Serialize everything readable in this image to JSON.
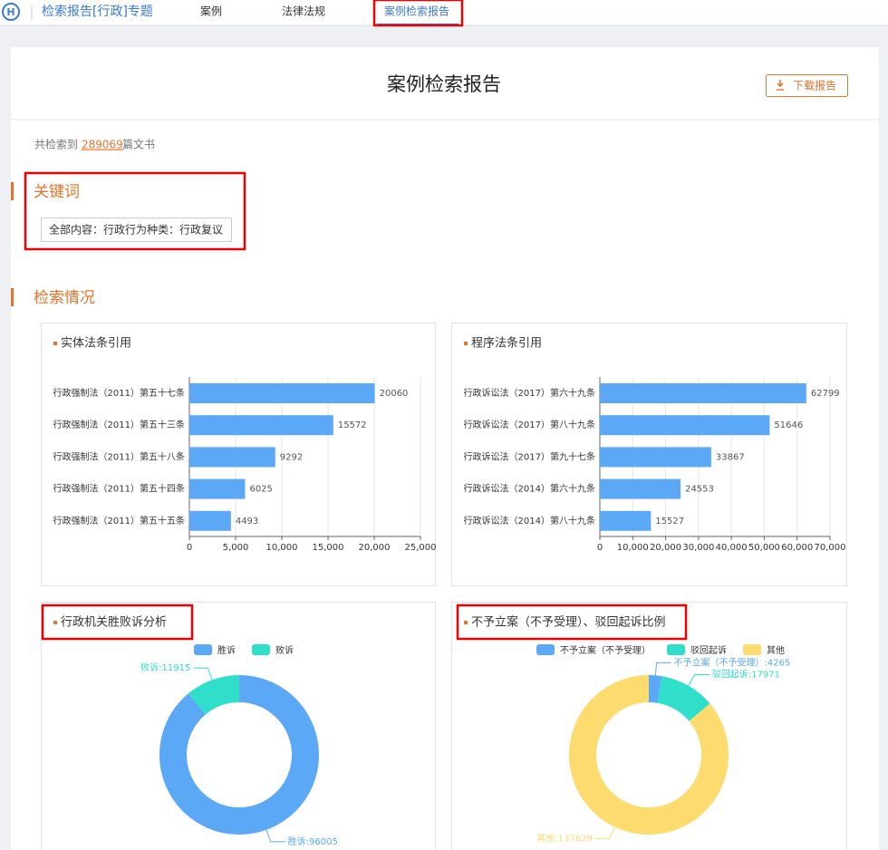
{
  "nav": {
    "brand": "检索报告[行政]专题",
    "tabs": [
      "案例",
      "法律法规",
      "案例检索报告"
    ]
  },
  "report": {
    "title": "案例检索报告",
    "download": "下载报告",
    "summary_prefix": "共检索到",
    "total": 289069,
    "summary_suffix": "篇文书"
  },
  "keywords": {
    "heading": "关键词",
    "tags": [
      "全部内容：行政行为种类：行政复议"
    ]
  },
  "search": {
    "heading": "检索情况"
  },
  "chart_data": [
    {
      "type": "bar",
      "title": "实体法条引用",
      "color": "#5ba8f7",
      "categories": [
        "行政强制法（2011）第五十七条",
        "行政强制法（2011）第五十三条",
        "行政强制法（2011）第五十八条",
        "行政强制法（2011）第五十四条",
        "行政强制法（2011）第五十五条"
      ],
      "values": [
        20060,
        15572,
        9292,
        6025,
        4493
      ],
      "xlim": [
        0,
        25000
      ],
      "xticks": [
        0,
        {
          "value": 5000,
          "label": "5,000"
        },
        {
          "value": 10000,
          "label": "10,000"
        },
        {
          "value": 15000,
          "label": "15,000"
        },
        {
          "value": 20000,
          "label": "20,000"
        },
        {
          "value": 25000,
          "label": "25,000"
        }
      ],
      "grid": true
    },
    {
      "type": "bar",
      "title": "程序法条引用",
      "color": "#5ba8f7",
      "categories": [
        "行政诉讼法（2017）第六十九条",
        "行政诉讼法（2017）第八十九条",
        "行政诉讼法（2017）第九十七条",
        "行政诉讼法（2014）第六十九条",
        "行政诉讼法（2014）第八十九条"
      ],
      "values": [
        62799,
        51646,
        33867,
        24553,
        15527
      ],
      "xlim": [
        0,
        70000
      ],
      "xticks": [
        0,
        {
          "value": 10000,
          "label": "10,000"
        },
        {
          "value": 20000,
          "label": "20,000"
        },
        {
          "value": 30000,
          "label": "30,000"
        },
        {
          "value": 40000,
          "label": "40,000"
        },
        {
          "value": 50000,
          "label": "50,000"
        },
        {
          "value": 60000,
          "label": "60,000"
        },
        {
          "value": 70000,
          "label": "70,000"
        }
      ],
      "grid": true
    },
    {
      "type": "pie",
      "title": "行政机关胜败诉分析",
      "categories": [
        "胜诉",
        "败诉"
      ],
      "values": [
        96005,
        11915
      ],
      "value_labels": [
        "胜诉:96005",
        "败诉:11915"
      ],
      "colors": [
        "#5ba8f7",
        "#2fdfc9"
      ]
    },
    {
      "type": "pie",
      "title": "不予立案（不予受理）、驳回起诉比例",
      "categories": [
        "不予立案（不予受理）",
        "驳回起诉",
        "其他"
      ],
      "values": [
        4265,
        17971,
        137629
      ],
      "value_labels": [
        "不予立案（不予受理）:4265",
        "驳回起诉:17971",
        "其他:137629"
      ],
      "colors": [
        "#5ba8f7",
        "#2fdfc9",
        "#fddb6f"
      ]
    }
  ]
}
